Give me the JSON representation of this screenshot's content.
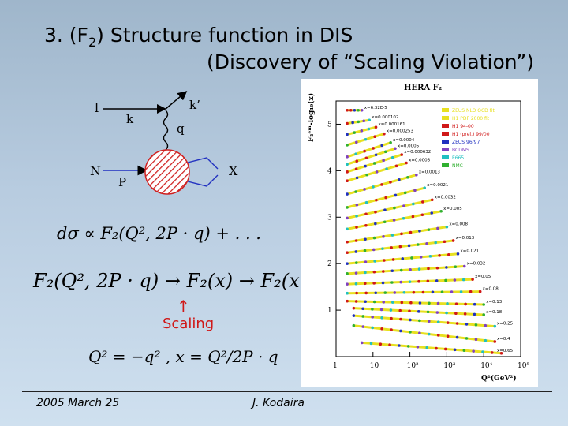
{
  "slide": {
    "title_line1_prefix": "3. (F",
    "title_line1_sub": "2",
    "title_line1_suffix": ") Structure function in DIS",
    "title_line2": "(Discovery of  “Scaling Violation”)"
  },
  "diagram": {
    "labels": {
      "l": "l",
      "k": "k",
      "k_prime": "k’",
      "q": "q",
      "N": "N",
      "P": "P",
      "X": "X"
    }
  },
  "formulas": {
    "cross_section": "dσ ∝ F₂(Q², 2P · q) + . . .",
    "scaling_limit": "F₂(Q², 2P · q) → F₂(x) → F₂(x , Q²)",
    "definitions": "Q² = −q² ,  x = Q²/2P · q"
  },
  "annotation": {
    "arrow": "↑",
    "label": "Scaling"
  },
  "chart_data": {
    "type": "scatter",
    "title": "HERA F₂",
    "xlabel": "Q²(GeV²)",
    "ylabel": "F₂ᵉᵐ-log₁₀(x)",
    "x_scale": "log",
    "xlim": [
      1,
      100000
    ],
    "ylim": [
      0,
      5.5
    ],
    "x_ticks": [
      "1",
      "10",
      "10²",
      "10³",
      "10⁴",
      "10⁵"
    ],
    "y_ticks": [
      "1",
      "2",
      "3",
      "4",
      "5"
    ],
    "legend_position": "top-right",
    "legend": [
      {
        "name": "ZEUS NLO QCD fit",
        "color": "#e8e020"
      },
      {
        "name": "H1 PDF 2000 fit",
        "color": "#e8e020"
      },
      {
        "name": "H1 94-00",
        "color": "#d01818"
      },
      {
        "name": "H1 (prel.) 99/00",
        "color": "#d01818"
      },
      {
        "name": "ZEUS 96/97",
        "color": "#2030c0"
      },
      {
        "name": "BCDMS",
        "color": "#8040c0"
      },
      {
        "name": "E665",
        "color": "#20c0c0"
      },
      {
        "name": "NMC",
        "color": "#30b030"
      }
    ],
    "series": [
      {
        "x_label": "x=6.32E-5",
        "level": 5.3,
        "slope": 0.0,
        "q2_min": 2,
        "q2_max": 5
      },
      {
        "x_label": "x=0.000102",
        "level": 5.1,
        "slope": 0.12,
        "q2_min": 2,
        "q2_max": 8
      },
      {
        "x_label": "x=0.000161",
        "level": 4.92,
        "slope": 0.2,
        "q2_min": 2,
        "q2_max": 12
      },
      {
        "x_label": "x=0.000253",
        "level": 4.72,
        "slope": 0.24,
        "q2_min": 2,
        "q2_max": 20
      },
      {
        "x_label": "x=0.0004",
        "level": 4.48,
        "slope": 0.26,
        "q2_min": 2,
        "q2_max": 30
      },
      {
        "x_label": "x=0.0005",
        "level": 4.32,
        "slope": 0.26,
        "q2_min": 2,
        "q2_max": 40
      },
      {
        "x_label": "x=0.000632",
        "level": 4.15,
        "slope": 0.25,
        "q2_min": 2,
        "q2_max": 60
      },
      {
        "x_label": "x=0.0008",
        "level": 3.95,
        "slope": 0.24,
        "q2_min": 2,
        "q2_max": 80
      },
      {
        "x_label": "x=0.0013",
        "level": 3.65,
        "slope": 0.22,
        "q2_min": 2,
        "q2_max": 150
      },
      {
        "x_label": "x=0.0021",
        "level": 3.35,
        "slope": 0.2,
        "q2_min": 2,
        "q2_max": 250
      },
      {
        "x_label": "x=0.0032",
        "level": 3.1,
        "slope": 0.17,
        "q2_min": 2,
        "q2_max": 400
      },
      {
        "x_label": "x=0.005",
        "level": 2.85,
        "slope": 0.15,
        "q2_min": 2,
        "q2_max": 700
      },
      {
        "x_label": "x=0.008",
        "level": 2.55,
        "slope": 0.12,
        "q2_min": 2,
        "q2_max": 1000
      },
      {
        "x_label": "x=0.013",
        "level": 2.3,
        "slope": 0.09,
        "q2_min": 2,
        "q2_max": 1500
      },
      {
        "x_label": "x=0.021",
        "level": 2.05,
        "slope": 0.07,
        "q2_min": 2,
        "q2_max": 2000
      },
      {
        "x_label": "x=0.032",
        "level": 1.82,
        "slope": 0.05,
        "q2_min": 2,
        "q2_max": 3000
      },
      {
        "x_label": "x=0.05",
        "level": 1.58,
        "slope": 0.03,
        "q2_min": 2,
        "q2_max": 5000
      },
      {
        "x_label": "x=0.08",
        "level": 1.37,
        "slope": 0.01,
        "q2_min": 2,
        "q2_max": 8000
      },
      {
        "x_label": "x=0.13",
        "level": 1.18,
        "slope": -0.02,
        "q2_min": 2,
        "q2_max": 10000
      },
      {
        "x_label": "x=0.18",
        "level": 1.02,
        "slope": -0.04,
        "q2_min": 3,
        "q2_max": 10000
      },
      {
        "x_label": "x=0.25",
        "level": 0.85,
        "slope": -0.06,
        "q2_min": 3,
        "q2_max": 20000
      },
      {
        "x_label": "x=0.4",
        "level": 0.62,
        "slope": -0.09,
        "q2_min": 3,
        "q2_max": 20000
      },
      {
        "x_label": "x=0.65",
        "level": 0.28,
        "slope": -0.06,
        "q2_min": 5,
        "q2_max": 30000
      }
    ]
  },
  "footer": {
    "date": "2005 March 25",
    "author": "J. Kodaira"
  }
}
